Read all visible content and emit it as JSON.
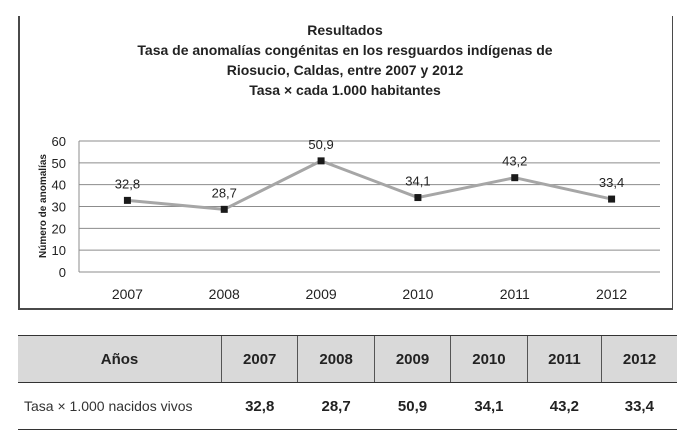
{
  "chart_data": {
    "type": "line",
    "title": "Resultados",
    "subtitle_lines": [
      "Tasa de anomalías congénitas en los resguardos indígenas de",
      "Riosucio, Caldas, entre 2007 y 2012",
      "Tasa × cada 1.000 habitantes"
    ],
    "xlabel": "",
    "ylabel": "Número de anomalías",
    "categories": [
      "2007",
      "2008",
      "2009",
      "2010",
      "2011",
      "2012"
    ],
    "series": [
      {
        "name": "Tasa",
        "values": [
          32.8,
          28.7,
          50.9,
          34.1,
          43.2,
          33.4
        ],
        "labels": [
          "32,8",
          "28,7",
          "50,9",
          "34,1",
          "43,2",
          "33,4"
        ],
        "line_color": "#a6a6a6",
        "marker_color": "#1a1a1a"
      }
    ],
    "ylim": [
      0,
      60
    ],
    "yticks": [
      0,
      10,
      20,
      30,
      40,
      50,
      60
    ],
    "ytick_labels": [
      "0",
      "10",
      "20",
      "30",
      "40",
      "50",
      "60"
    ],
    "grid": true,
    "legend": "none"
  },
  "table": {
    "header_label": "Años",
    "years": [
      "2007",
      "2008",
      "2009",
      "2010",
      "2011",
      "2012"
    ],
    "row_label": "Tasa × 1.000 nacidos vivos",
    "values": [
      "32,8",
      "28,7",
      "50,9",
      "34,1",
      "43,2",
      "33,4"
    ]
  }
}
